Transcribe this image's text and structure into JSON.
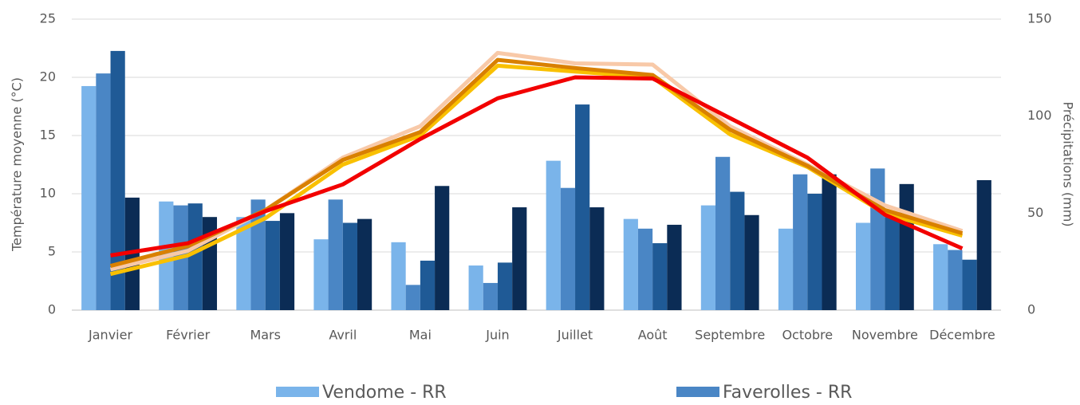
{
  "chart_data": {
    "type": "combo",
    "ylabel": "Température moyenne (°C)",
    "y2label": "Précipitations (mm)",
    "categories": [
      "Janvier",
      "Février",
      "Mars",
      "Avril",
      "Mai",
      "Juin",
      "Juillet",
      "Août",
      "Septembre",
      "Octobre",
      "Novembre",
      "Décembre"
    ],
    "ylim": [
      0,
      25
    ],
    "yticks": [
      0,
      5,
      10,
      15,
      20,
      25
    ],
    "y2lim": [
      0,
      150
    ],
    "y2ticks": [
      0,
      50,
      100,
      150
    ],
    "grid": true,
    "legend": "bottom",
    "series": [
      {
        "name": "Vendome - RR",
        "type": "bar",
        "axis": "y2",
        "color": "#7ab4ea",
        "values": [
          115.5,
          56,
          48,
          36.5,
          35,
          23,
          77,
          47,
          54,
          42,
          45,
          34
        ]
      },
      {
        "name": "Faverolles - RR",
        "type": "bar",
        "axis": "y2",
        "color": "#4a86c5",
        "values": [
          122,
          54,
          57,
          57,
          13,
          14,
          63,
          42,
          79,
          70,
          73,
          31
        ]
      },
      {
        "type": "bar",
        "axis": "y2",
        "color": "#1f5a96",
        "values": [
          133.6,
          55,
          46,
          45,
          25.5,
          24.5,
          106,
          34.5,
          61,
          60,
          48,
          26
        ]
      },
      {
        "type": "bar",
        "axis": "y2",
        "color": "#0b2c55",
        "values": [
          58,
          48,
          50,
          47,
          64,
          53,
          53,
          44,
          49,
          70,
          65,
          67
        ]
      },
      {
        "type": "line",
        "color": "#f8c9a8",
        "values": [
          3.5,
          5.1,
          8.6,
          13.1,
          15.8,
          22.1,
          21.2,
          21.1,
          15.8,
          12.5,
          9,
          6.8
        ]
      },
      {
        "type": "line",
        "color": "#f9c000",
        "values": [
          3.1,
          4.7,
          7.9,
          12.5,
          15,
          21,
          20.5,
          20,
          15.1,
          12.3,
          8.3,
          6.4
        ]
      },
      {
        "type": "line",
        "color": "#d98000",
        "values": [
          3.8,
          5.5,
          8.6,
          12.9,
          15.3,
          21.5,
          20.8,
          20.2,
          15.5,
          12.4,
          8.6,
          6.6
        ]
      },
      {
        "type": "line",
        "color": "#f20000",
        "values": [
          4.7,
          5.75,
          8.5,
          10.8,
          14.7,
          18.2,
          20,
          19.9,
          16.5,
          13.1,
          8.2,
          5.3
        ]
      }
    ]
  }
}
